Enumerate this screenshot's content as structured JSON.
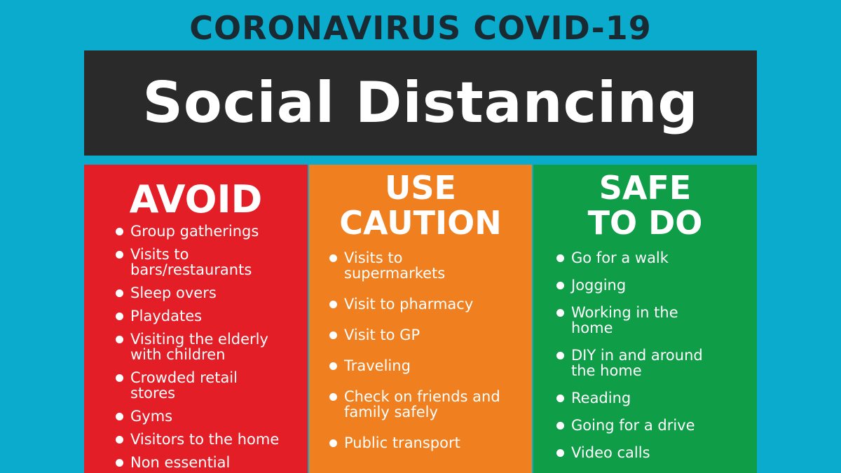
{
  "header": {
    "title": "CORONAVIRUS COVID-19",
    "banner": "Social Distancing"
  },
  "colors": {
    "background": "#0aabcc",
    "banner": "#2a2a2a",
    "avoid": "#e31e26",
    "use_caution": "#f07f1f",
    "safe_to_do": "#0f9d48"
  },
  "columns": {
    "avoid": {
      "heading": [
        "AVOID"
      ],
      "items": [
        "Group gatherings",
        "Visits to bars/restaurants",
        "Sleep overs",
        "Playdates",
        "Visiting the elderly with children",
        "Crowded retail stores",
        "Gyms",
        "Visitors to the home",
        "Non essential"
      ]
    },
    "use_caution": {
      "heading": [
        "USE",
        "CAUTION"
      ],
      "items": [
        "Visits to supermarkets",
        "Visit to pharmacy",
        "Visit to GP",
        "Traveling",
        "Check on friends and family safely",
        "Public transport"
      ]
    },
    "safe_to_do": {
      "heading": [
        "SAFE",
        "TO DO"
      ],
      "items": [
        "Go for a walk",
        "Jogging",
        "Working in the home",
        "DIY in and around the home",
        "Reading",
        "Going for a drive",
        "Video calls"
      ]
    }
  }
}
